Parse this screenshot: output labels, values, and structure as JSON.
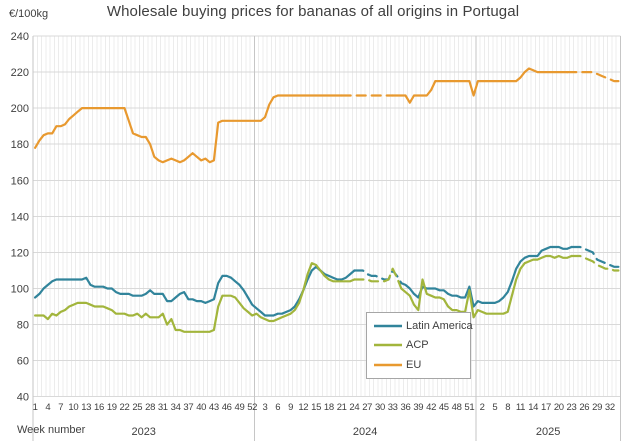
{
  "header": {
    "title": "Wholesale buying prices for bananas of all origins in Portugal",
    "y_axis_unit": "€/100kg",
    "x_axis_title": "Week number"
  },
  "chart_data": {
    "type": "line",
    "title": "Wholesale buying prices for bananas of all origins in Portugal",
    "ylabel": "€/100kg",
    "xlabel": "Week number",
    "ylim": [
      40,
      240
    ],
    "ytick_step": 20,
    "grid": true,
    "legend_position": "inside-bottom-center",
    "colors": {
      "latin_america": "#31849B",
      "acp": "#A2B53C",
      "eu": "#E8992F",
      "gridline_major": "#D9D9D9",
      "gridline_minor": "#ECECEC",
      "axis_separator": "#C6C6C6",
      "text": "#404040"
    },
    "years": [
      {
        "year": "2023",
        "weeks": 52,
        "tick_labels": [
          1,
          4,
          7,
          10,
          13,
          16,
          19,
          22,
          25,
          28,
          31,
          34,
          37,
          40,
          43,
          46,
          49,
          52
        ]
      },
      {
        "year": "2024",
        "weeks": 52,
        "tick_labels": [
          3,
          6,
          9,
          12,
          15,
          18,
          21,
          24,
          27,
          30,
          33,
          36,
          39,
          42,
          45,
          48,
          51
        ]
      },
      {
        "year": "2025",
        "weeks": 34,
        "tick_labels": [
          2,
          5,
          8,
          11,
          14,
          17,
          20,
          23,
          26,
          29,
          32
        ]
      }
    ],
    "series": [
      {
        "name": "Latin America",
        "color": "#31849B",
        "dashed_ranges": [
          [
            75,
            86
          ],
          [
            126,
            137
          ]
        ],
        "values_2023": [
          95,
          97,
          100,
          102,
          104,
          105,
          105,
          105,
          105,
          105,
          105,
          105,
          106,
          102,
          101,
          101,
          101,
          100,
          100,
          98,
          97,
          97,
          97,
          96,
          96,
          96,
          97,
          99,
          97,
          97,
          97,
          93,
          93,
          95,
          97,
          98,
          94,
          94,
          93,
          93,
          92,
          93,
          94,
          103,
          107,
          107,
          106,
          104,
          102,
          99,
          95,
          91
        ],
        "values_2024": [
          89,
          87,
          85,
          85,
          85,
          86,
          86,
          87,
          88,
          90,
          94,
          99,
          105,
          110,
          112,
          110,
          108,
          107,
          106,
          105,
          105,
          106,
          108,
          110,
          110,
          110,
          108,
          107,
          107,
          106,
          105,
          105,
          110,
          107,
          103,
          102,
          100,
          97,
          95,
          101,
          100,
          100,
          100,
          99,
          99,
          97,
          96,
          96,
          95,
          95,
          101,
          90
        ],
        "values_2025": [
          93,
          92,
          92,
          92,
          92,
          93,
          95,
          98,
          104,
          111,
          115,
          117,
          118,
          118,
          118,
          121,
          122,
          123,
          123,
          123,
          122,
          122,
          123,
          123,
          123,
          122,
          121,
          120,
          116,
          115,
          114,
          113,
          112,
          112
        ]
      },
      {
        "name": "ACP",
        "color": "#A2B53C",
        "dashed_ranges": [
          [
            75,
            86
          ],
          [
            126,
            137
          ]
        ],
        "values_2023": [
          85,
          85,
          85,
          83,
          86,
          85,
          87,
          88,
          90,
          91,
          92,
          92,
          92,
          91,
          90,
          90,
          90,
          89,
          88,
          86,
          86,
          86,
          85,
          85,
          86,
          84,
          86,
          84,
          84,
          84,
          86,
          80,
          83,
          77,
          77,
          76,
          76,
          76,
          76,
          76,
          76,
          76,
          77,
          90,
          96,
          96,
          96,
          95,
          92,
          89,
          87,
          85
        ],
        "values_2024": [
          86,
          84,
          83,
          82,
          82,
          83,
          84,
          85,
          86,
          88,
          92,
          99,
          108,
          114,
          113,
          110,
          107,
          105,
          104,
          104,
          104,
          104,
          104,
          105,
          105,
          105,
          105,
          104,
          104,
          104,
          104,
          105,
          111,
          106,
          100,
          98,
          96,
          91,
          88,
          105,
          97,
          96,
          95,
          95,
          94,
          90,
          88,
          88,
          87,
          87,
          99,
          84
        ],
        "values_2025": [
          88,
          87,
          86,
          86,
          86,
          86,
          86,
          87,
          96,
          105,
          111,
          114,
          115,
          116,
          116,
          117,
          118,
          118,
          117,
          118,
          117,
          117,
          118,
          118,
          118,
          117,
          116,
          115,
          113,
          112,
          111,
          111,
          110,
          110
        ]
      },
      {
        "name": "EU",
        "color": "#E8992F",
        "dashed_ranges": [
          [
            72,
            84
          ],
          [
            125,
            137
          ]
        ],
        "values_2023": [
          178,
          182,
          185,
          186,
          186,
          190,
          190,
          191,
          194,
          196,
          198,
          200,
          200,
          200,
          200,
          200,
          200,
          200,
          200,
          200,
          200,
          200,
          193,
          186,
          185,
          184,
          184,
          180,
          173,
          171,
          170,
          171,
          172,
          171,
          170,
          171,
          173,
          175,
          173,
          171,
          172,
          170,
          171,
          192,
          193,
          193,
          193,
          193,
          193,
          193,
          193,
          193
        ],
        "values_2024": [
          193,
          193,
          195,
          202,
          206,
          207,
          207,
          207,
          207,
          207,
          207,
          207,
          207,
          207,
          207,
          207,
          207,
          207,
          207,
          207,
          207,
          207,
          207,
          207,
          207,
          207,
          207,
          207,
          207,
          207,
          207,
          207,
          207,
          207,
          207,
          207,
          203,
          207,
          207,
          207,
          207,
          210,
          215,
          215,
          215,
          215,
          215,
          215,
          215,
          215,
          215,
          207
        ],
        "values_2025": [
          215,
          215,
          215,
          215,
          215,
          215,
          215,
          215,
          215,
          215,
          217,
          220,
          222,
          221,
          220,
          220,
          220,
          220,
          220,
          220,
          220,
          220,
          220,
          220,
          220,
          220,
          220,
          220,
          219,
          218,
          217,
          216,
          215,
          215
        ]
      }
    ]
  }
}
